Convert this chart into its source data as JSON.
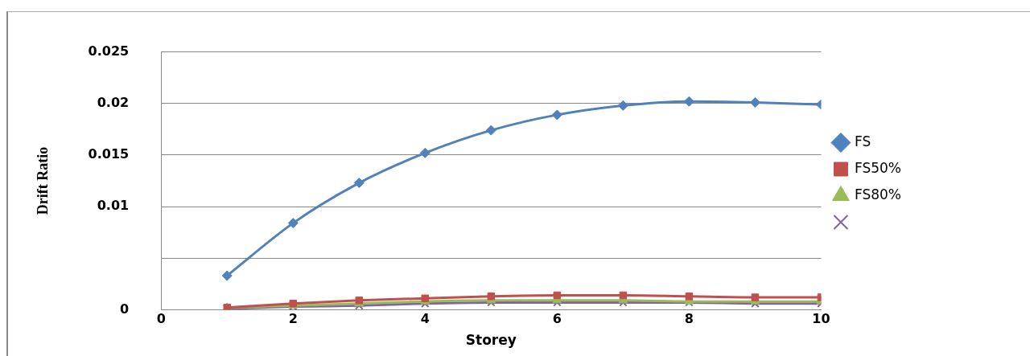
{
  "chart_data": {
    "type": "line",
    "xlabel": "Storey",
    "ylabel": "Drift Ratio",
    "x": [
      1,
      2,
      3,
      4,
      5,
      6,
      7,
      8,
      9,
      10
    ],
    "series": [
      {
        "name": "FS",
        "color": "#4f81bd",
        "marker": "diamond",
        "values": [
          0.0033,
          0.0084,
          0.0123,
          0.0152,
          0.0174,
          0.0189,
          0.0198,
          0.0202,
          0.0201,
          0.0199
        ]
      },
      {
        "name": "FS50%",
        "color": "#c0504d",
        "marker": "square",
        "values": [
          0.0002,
          0.0006,
          0.0009,
          0.0011,
          0.0013,
          0.0014,
          0.0014,
          0.0013,
          0.0012,
          0.0012
        ]
      },
      {
        "name": "FS80%",
        "color": "#9bbb59",
        "marker": "triangle",
        "values": [
          0.0002,
          0.0004,
          0.0006,
          0.0008,
          0.0009,
          0.0009,
          0.0009,
          0.0008,
          0.0008,
          0.0008
        ]
      },
      {
        "color": "#8064a2",
        "marker": "cross",
        "values": [
          0.0001,
          0.0003,
          0.0004,
          0.0006,
          0.0007,
          0.0007,
          0.0007,
          0.0007,
          0.0006,
          0.0006
        ]
      }
    ],
    "xlim": [
      0,
      10
    ],
    "xticks": [
      0,
      2,
      4,
      6,
      8,
      10
    ],
    "ylim": [
      0,
      0.025
    ],
    "yticks": [
      0,
      {
        "value": 0.005,
        "label": null
      },
      0.01,
      0.015,
      0.02,
      0.025
    ],
    "grid": "y",
    "legend": "right",
    "line_style": "solid"
  }
}
